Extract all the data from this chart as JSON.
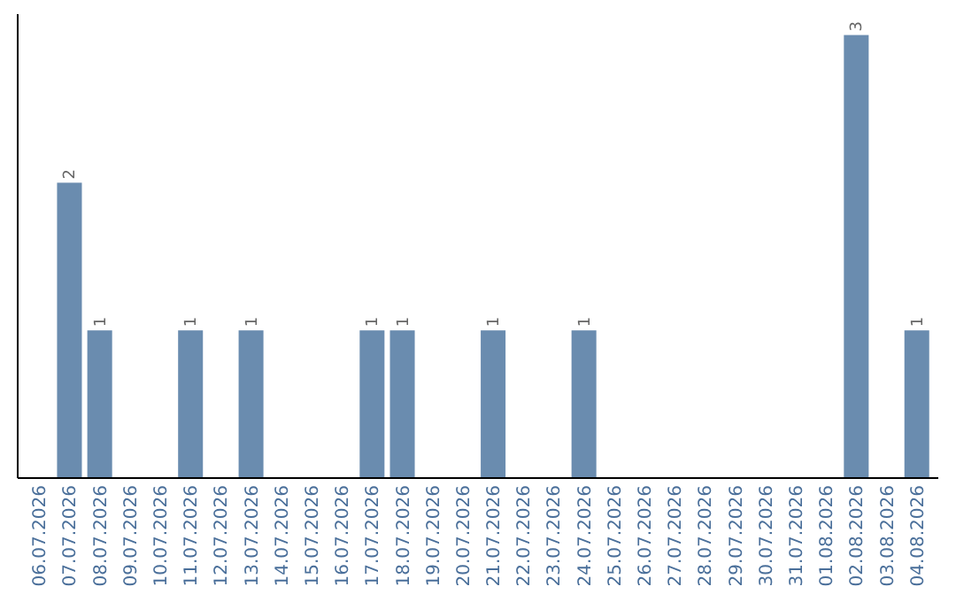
{
  "chart_data": {
    "type": "bar",
    "categories": [
      "06.07.2026",
      "07.07.2026",
      "08.07.2026",
      "09.07.2026",
      "10.07.2026",
      "11.07.2026",
      "12.07.2026",
      "13.07.2026",
      "14.07.2026",
      "15.07.2026",
      "16.07.2026",
      "17.07.2026",
      "18.07.2026",
      "19.07.2026",
      "20.07.2026",
      "21.07.2026",
      "22.07.2026",
      "23.07.2026",
      "24.07.2026",
      "25.07.2026",
      "26.07.2026",
      "27.07.2026",
      "28.07.2026",
      "29.07.2026",
      "30.07.2026",
      "31.07.2026",
      "01.08.2026",
      "02.08.2026",
      "03.08.2026",
      "04.08.2026"
    ],
    "values": [
      0,
      2,
      1,
      0,
      0,
      1,
      0,
      1,
      0,
      0,
      0,
      1,
      1,
      0,
      0,
      1,
      0,
      0,
      1,
      0,
      0,
      0,
      0,
      0,
      0,
      0,
      0,
      3,
      0,
      1
    ],
    "value_labels": [
      null,
      "2",
      "1",
      null,
      null,
      "1",
      null,
      "1",
      null,
      null,
      null,
      "1",
      "1",
      null,
      null,
      "1",
      null,
      null,
      "1",
      null,
      null,
      null,
      null,
      null,
      null,
      null,
      null,
      "3",
      null,
      "1"
    ],
    "color": "#6a8caf",
    "tick_labels": "x",
    "grid": false
  }
}
